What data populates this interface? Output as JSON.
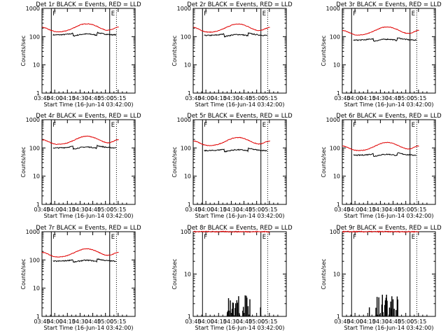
{
  "colors": {
    "events": "#000000",
    "lld": "#e00000",
    "background": "#ffffff"
  },
  "chart_data": [
    {
      "type": "line",
      "title": "Det 1r BLACK = Events, RED = LLD",
      "xlabel": "Start Time (16-Jun-14 03:42:00)",
      "ylabel": "Counts/sec",
      "scale": "log",
      "ylim": [
        1,
        1000
      ],
      "xticks": [
        "03:45",
        "04:00",
        "04:15",
        "04:30",
        "04:45",
        "05:00",
        "05:15"
      ],
      "yticks": [
        "1",
        "10",
        "100",
        "1000"
      ],
      "markers": [
        {
          "label": "F",
          "time": "03:56",
          "style": "solid"
        },
        {
          "label": "E",
          "time": "05:05",
          "style": "solid"
        },
        {
          "label": "",
          "time": "05:13",
          "style": "dotted"
        }
      ],
      "series": [
        {
          "color": "black",
          "baseline": 115,
          "hump": 1.35
        },
        {
          "color": "red",
          "baseline": 220,
          "hump": 2.0
        }
      ],
      "variant": "normal"
    },
    {
      "type": "line",
      "title": "Det 2r BLACK = Events, RED = LLD",
      "xlabel": "Start Time (16-Jun-14 03:42:00)",
      "ylabel": "Counts/sec",
      "scale": "log",
      "ylim": [
        1,
        1000
      ],
      "xticks": [
        "03:45",
        "04:00",
        "04:15",
        "04:30",
        "04:45",
        "05:00",
        "05:15"
      ],
      "yticks": [
        "1",
        "10",
        "100",
        "1000"
      ],
      "markers": [
        {
          "label": "F",
          "time": "03:56",
          "style": "solid"
        },
        {
          "label": "E",
          "time": "05:05",
          "style": "solid"
        },
        {
          "label": "",
          "time": "05:13",
          "style": "dotted"
        }
      ],
      "series": [
        {
          "color": "black",
          "baseline": 110,
          "hump": 1.35
        },
        {
          "color": "red",
          "baseline": 215,
          "hump": 2.0
        }
      ],
      "variant": "normal"
    },
    {
      "type": "line",
      "title": "Det 3r BLACK = Events, RED = LLD",
      "xlabel": "Start Time (16-Jun-14 03:42:00)",
      "ylabel": "Counts/sec",
      "scale": "log",
      "ylim": [
        1,
        1000
      ],
      "xticks": [
        "03:45",
        "04:00",
        "04:15",
        "04:30",
        "04:45",
        "05:00",
        "05:15"
      ],
      "yticks": [
        "1",
        "10",
        "100",
        "1000"
      ],
      "markers": [
        {
          "label": "F",
          "time": "03:56",
          "style": "solid"
        },
        {
          "label": "E",
          "time": "05:05",
          "style": "solid"
        },
        {
          "label": "",
          "time": "05:13",
          "style": "dotted"
        }
      ],
      "series": [
        {
          "color": "black",
          "baseline": 75,
          "hump": 1.35
        },
        {
          "color": "red",
          "baseline": 170,
          "hump": 2.0
        }
      ],
      "variant": "normal"
    },
    {
      "type": "line",
      "title": "Det 4r BLACK = Events, RED = LLD",
      "xlabel": "Start Time (16-Jun-14 03:42:00)",
      "ylabel": "Counts/sec",
      "scale": "log",
      "ylim": [
        1,
        1000
      ],
      "xticks": [
        "03:45",
        "04:00",
        "04:15",
        "04:30",
        "04:45",
        "05:00",
        "05:15"
      ],
      "yticks": [
        "1",
        "10",
        "100",
        "1000"
      ],
      "markers": [
        {
          "label": "F",
          "time": "03:56",
          "style": "solid"
        },
        {
          "label": "E",
          "time": "05:05",
          "style": "solid"
        },
        {
          "label": "",
          "time": "05:13",
          "style": "dotted"
        }
      ],
      "series": [
        {
          "color": "black",
          "baseline": 100,
          "hump": 1.35
        },
        {
          "color": "red",
          "baseline": 200,
          "hump": 2.0
        }
      ],
      "variant": "normal"
    },
    {
      "type": "line",
      "title": "Det 5r BLACK = Events, RED = LLD",
      "xlabel": "Start Time (16-Jun-14 03:42:00)",
      "ylabel": "Counts/sec",
      "scale": "log",
      "ylim": [
        1,
        1000
      ],
      "xticks": [
        "03:45",
        "04:00",
        "04:15",
        "04:30",
        "04:45",
        "05:00",
        "05:15"
      ],
      "yticks": [
        "1",
        "10",
        "100",
        "1000"
      ],
      "markers": [
        {
          "label": "F",
          "time": "03:56",
          "style": "solid"
        },
        {
          "label": "E",
          "time": "05:05",
          "style": "solid"
        },
        {
          "label": "",
          "time": "05:13",
          "style": "dotted"
        }
      ],
      "series": [
        {
          "color": "black",
          "baseline": 80,
          "hump": 1.35
        },
        {
          "color": "red",
          "baseline": 180,
          "hump": 2.0
        }
      ],
      "variant": "normal"
    },
    {
      "type": "line",
      "title": "Det 6r BLACK = Events, RED = LLD",
      "xlabel": "Start Time (16-Jun-14 03:42:00)",
      "ylabel": "Counts/sec",
      "scale": "log",
      "ylim": [
        1,
        1000
      ],
      "xticks": [
        "03:45",
        "04:00",
        "04:15",
        "04:30",
        "04:45",
        "05:00",
        "05:15"
      ],
      "yticks": [
        "1",
        "10",
        "100",
        "1000"
      ],
      "markers": [
        {
          "label": "F",
          "time": "03:56",
          "style": "solid"
        },
        {
          "label": "E",
          "time": "05:05",
          "style": "solid"
        },
        {
          "label": "",
          "time": "05:13",
          "style": "dotted"
        }
      ],
      "series": [
        {
          "color": "black",
          "baseline": 55,
          "hump": 1.35
        },
        {
          "color": "red",
          "baseline": 120,
          "hump": 2.0
        }
      ],
      "variant": "normal"
    },
    {
      "type": "line",
      "title": "Det 7r BLACK = Events, RED = LLD",
      "xlabel": "Start Time (16-Jun-14 03:42:00)",
      "ylabel": "Counts/sec",
      "scale": "log",
      "ylim": [
        1,
        1000
      ],
      "xticks": [
        "03:45",
        "04:00",
        "04:15",
        "04:30",
        "04:45",
        "05:00",
        "05:15"
      ],
      "yticks": [
        "1",
        "10",
        "100",
        "1000"
      ],
      "markers": [
        {
          "label": "F",
          "time": "03:56",
          "style": "solid"
        },
        {
          "label": "E",
          "time": "05:05",
          "style": "solid"
        },
        {
          "label": "",
          "time": "05:13",
          "style": "dotted"
        }
      ],
      "series": [
        {
          "color": "black",
          "baseline": 90,
          "hump": 1.35
        },
        {
          "color": "red",
          "baseline": 190,
          "hump": 2.0
        }
      ],
      "variant": "normal"
    },
    {
      "type": "line",
      "title": "Det 8r BLACK = Events, RED = LLD",
      "xlabel": "Start Time (16-Jun-14 03:42:00)",
      "ylabel": "Counts/sec",
      "scale": "log",
      "ylim": [
        1,
        100
      ],
      "xticks": [
        "03:45",
        "04:00",
        "04:15",
        "04:30",
        "04:45",
        "05:00",
        "05:15"
      ],
      "yticks": [
        "1",
        "10",
        "100"
      ],
      "markers": [
        {
          "label": "F",
          "time": "03:56",
          "style": "solid"
        },
        {
          "label": "E",
          "time": "05:05",
          "style": "solid"
        },
        {
          "label": "",
          "time": "05:13",
          "style": "dotted"
        }
      ],
      "series": [
        {
          "color": "black",
          "baseline": 1.5,
          "hump": 1.0
        },
        {
          "color": "red",
          "baseline": 100,
          "hump": 1.0
        }
      ],
      "variant": "sparse"
    },
    {
      "type": "line",
      "title": "Det 9r BLACK = Events, RED = LLD",
      "xlabel": "Start Time (16-Jun-14 03:42:00)",
      "ylabel": "Counts/sec",
      "scale": "log",
      "ylim": [
        1,
        100
      ],
      "xticks": [
        "03:45",
        "04:00",
        "04:15",
        "04:30",
        "04:45",
        "05:00",
        "05:15"
      ],
      "yticks": [
        "1",
        "10",
        "100"
      ],
      "markers": [
        {
          "label": "F",
          "time": "03:56",
          "style": "solid"
        },
        {
          "label": "E",
          "time": "05:05",
          "style": "solid"
        },
        {
          "label": "",
          "time": "05:13",
          "style": "dotted"
        }
      ],
      "series": [
        {
          "color": "black",
          "baseline": 1.3,
          "hump": 1.0
        },
        {
          "color": "red",
          "baseline": 100,
          "hump": 1.0
        }
      ],
      "variant": "sparse"
    }
  ]
}
